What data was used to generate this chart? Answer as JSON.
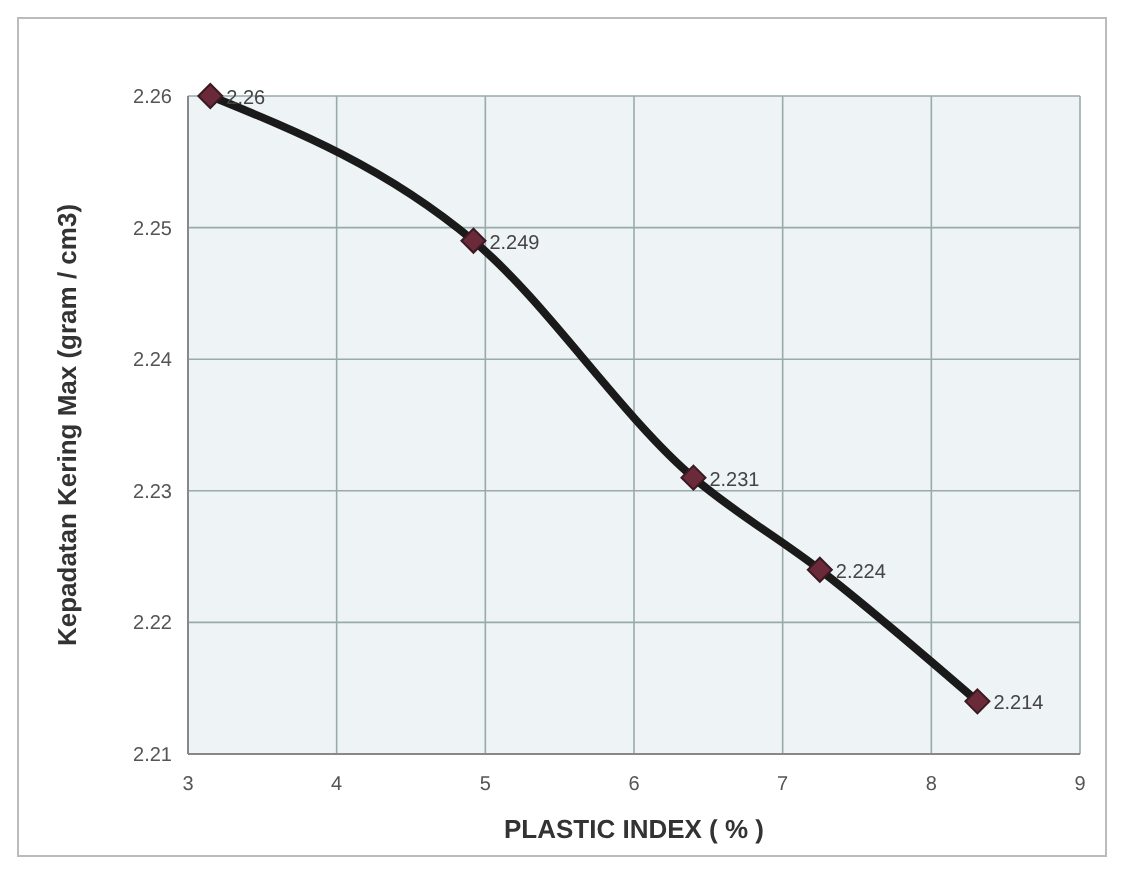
{
  "chart_data": {
    "type": "line",
    "xlabel": "PLASTIC INDEX ( % )",
    "ylabel": "Kepadatan Kering  Max (gram / cm3)",
    "x": [
      3.15,
      4.92,
      6.4,
      7.25,
      8.31
    ],
    "series": [
      {
        "color": "#1a1a1a",
        "values": [
          2.26,
          2.249,
          2.231,
          2.224,
          2.214
        ]
      }
    ],
    "value_labels": [
      "2.26",
      "2.249",
      "2.231",
      "2.224",
      "2.214"
    ],
    "xlim": [
      3,
      9
    ],
    "xticks": [
      3,
      4,
      5,
      6,
      7,
      8,
      9
    ],
    "ylim": [
      2.21,
      2.26
    ],
    "yticks": [
      2.21,
      2.22,
      2.23,
      2.24,
      2.25,
      2.26
    ],
    "grid": true,
    "marker": "diamond",
    "line_style": "solid"
  }
}
